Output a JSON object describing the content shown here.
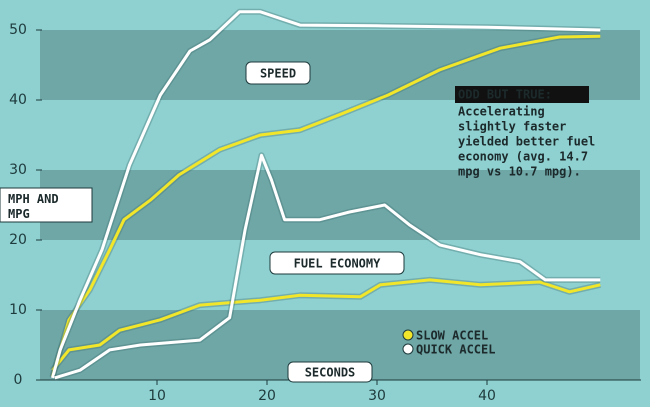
{
  "chart_data": {
    "type": "line",
    "y_label": "MPH AND MPG",
    "x_label": "SECONDS",
    "annotations": {
      "speed": "SPEED",
      "fuel": "FUEL ECONOMY",
      "note_title": "ODD BUT TRUE:",
      "note_lines": [
        "Accelerating",
        "slightly faster",
        "yielded better fuel",
        "economy (avg. 14.7",
        "mpg vs 10.7 mpg)."
      ]
    },
    "xlim": [
      0,
      54
    ],
    "ylim": [
      0,
      54
    ],
    "xticks": [
      10,
      20,
      30,
      40
    ],
    "yticks": [
      0,
      10,
      20,
      30,
      40,
      50
    ],
    "series": [
      {
        "name": "SLOW ACCEL",
        "color": "#f2e62a",
        "speed": {
          "x": [
            0.5,
            2,
            3.9,
            5.7,
            7,
            9.4,
            12,
            15.7,
            19.4,
            23,
            26.6,
            31,
            35.7,
            41.2,
            46.6,
            50.3
          ],
          "values": [
            0.5,
            8.6,
            12.9,
            18.6,
            22.9,
            25.7,
            29.3,
            32.9,
            35,
            35.7,
            37.9,
            40.7,
            44.3,
            47.4,
            49,
            49.1
          ]
        },
        "fuel": {
          "x": [
            0.5,
            2,
            4.8,
            6.6,
            10.3,
            13.9,
            19.4,
            23,
            28.5,
            30.3,
            34.8,
            39.4,
            44.8,
            47.5,
            50.3
          ],
          "values": [
            1.4,
            4.3,
            5,
            7.1,
            8.6,
            10.7,
            11.4,
            12.1,
            11.9,
            13.6,
            14.3,
            13.6,
            14,
            12.6,
            13.6
          ]
        }
      },
      {
        "name": "QUICK ACCEL",
        "color": "#ffffff",
        "speed": {
          "x": [
            0.5,
            1.2,
            3,
            5,
            7.5,
            10.3,
            13,
            14.8,
            17.5,
            19.4,
            23,
            30,
            40,
            50.3
          ],
          "values": [
            0.3,
            4.3,
            11.4,
            18.6,
            30.7,
            40.7,
            47,
            48.6,
            52.6,
            52.6,
            50.7,
            50.6,
            50.4,
            50
          ]
        },
        "fuel": {
          "x": [
            0.7,
            3,
            5.7,
            8.5,
            13.9,
            16.6,
            18,
            19.5,
            20.4,
            21.6,
            24.8,
            27.5,
            30.7,
            33,
            35.7,
            39.4,
            43,
            45.3,
            50.3
          ],
          "values": [
            0.3,
            1.4,
            4.3,
            5,
            5.7,
            8.9,
            21.4,
            32.1,
            28.6,
            22.9,
            22.9,
            24,
            25,
            22.1,
            19.3,
            17.9,
            16.9,
            14.3,
            14.3
          ]
        }
      }
    ]
  }
}
